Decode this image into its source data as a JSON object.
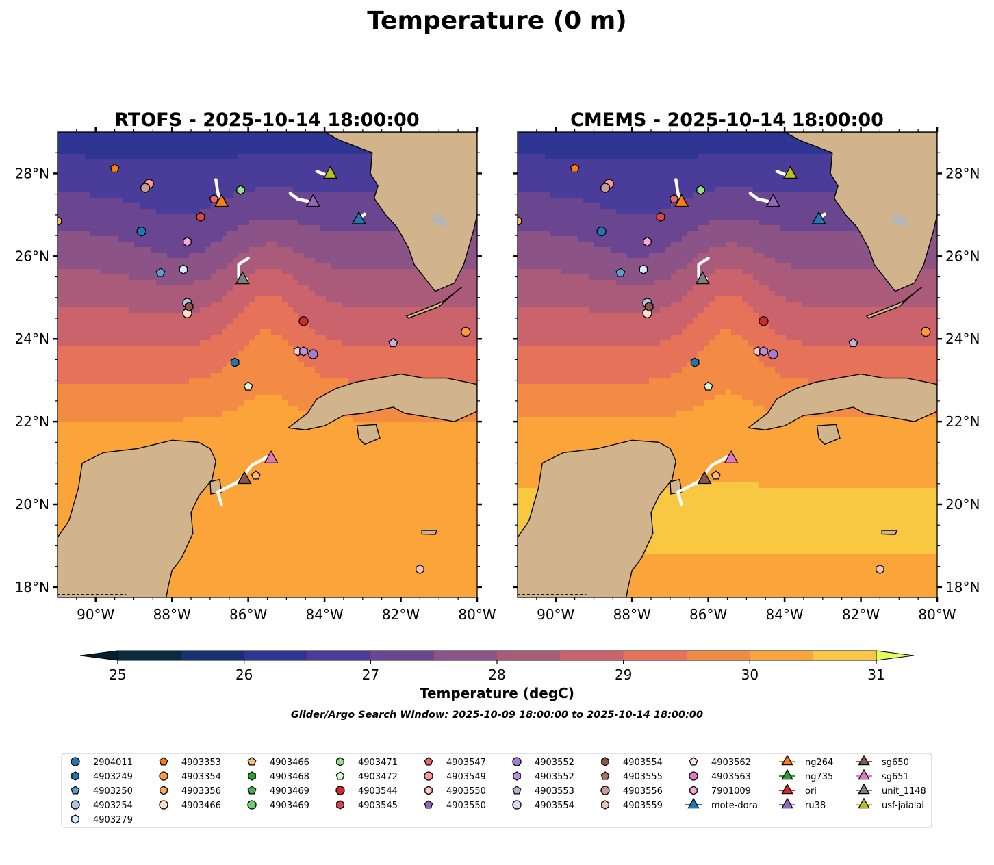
{
  "figure_title": "Temperature (0 m)",
  "panels": [
    {
      "id": "rtofs",
      "title": "RTOFS - 2025-10-14 18:00:00"
    },
    {
      "id": "cmems",
      "title": "CMEMS - 2025-10-14 18:00:00"
    }
  ],
  "map_extent": {
    "lon_min": -91.0,
    "lon_max": -80.0,
    "lat_min": 17.75,
    "lat_max": 29.0
  },
  "axes": {
    "x_ticks": [
      {
        "value": -90,
        "label": "90°W"
      },
      {
        "value": -88,
        "label": "88°W"
      },
      {
        "value": -86,
        "label": "86°W"
      },
      {
        "value": -84,
        "label": "84°W"
      },
      {
        "value": -82,
        "label": "82°W"
      },
      {
        "value": -80,
        "label": "80°W"
      }
    ],
    "y_ticks": [
      {
        "value": 18,
        "label": "18°N"
      },
      {
        "value": 20,
        "label": "20°N"
      },
      {
        "value": 22,
        "label": "22°N"
      },
      {
        "value": 24,
        "label": "24°N"
      },
      {
        "value": 26,
        "label": "26°N"
      },
      {
        "value": 28,
        "label": "28°N"
      }
    ]
  },
  "colorbar": {
    "label": "Temperature (degC)",
    "min": 25,
    "max": 31,
    "tick_values": [
      25,
      26,
      27,
      28,
      29,
      30,
      31
    ],
    "tick_labels": [
      "25",
      "26",
      "27",
      "28",
      "29",
      "30",
      "31"
    ],
    "under_color": "#04202c",
    "over_color": "#e8fa5b",
    "bins": [
      {
        "from": 25.0,
        "to": 25.5,
        "color": "#0a2a42"
      },
      {
        "from": 25.5,
        "to": 26.0,
        "color": "#173172"
      },
      {
        "from": 26.0,
        "to": 26.5,
        "color": "#2e3593"
      },
      {
        "from": 26.5,
        "to": 27.0,
        "color": "#4a3d99"
      },
      {
        "from": 27.0,
        "to": 27.5,
        "color": "#6a4690"
      },
      {
        "from": 27.5,
        "to": 28.0,
        "color": "#8b5386"
      },
      {
        "from": 28.0,
        "to": 28.5,
        "color": "#ab5b7a"
      },
      {
        "from": 28.5,
        "to": 29.0,
        "color": "#cb636c"
      },
      {
        "from": 29.0,
        "to": 29.5,
        "color": "#e57259"
      },
      {
        "from": 29.5,
        "to": 30.0,
        "color": "#f48b45"
      },
      {
        "from": 30.0,
        "to": 30.5,
        "color": "#fba43a"
      },
      {
        "from": 30.5,
        "to": 31.0,
        "color": "#f8c843"
      }
    ]
  },
  "search_window": "Glider/Argo Search Window: 2025-10-09 18:00:00 to 2025-10-14 18:00:00",
  "colors": {
    "land": "#d2b48c",
    "coast": "#000000",
    "track": "#ffffff",
    "lake": "#a7c0dc"
  },
  "platforms": [
    {
      "label": "2904011",
      "shape": "circle",
      "color": "#1f77b4",
      "lon": -88.8,
      "lat": 26.6
    },
    {
      "label": "4903249",
      "shape": "hexagon",
      "color": "#1f77b4",
      "lon": -86.35,
      "lat": 23.43
    },
    {
      "label": "4903250",
      "shape": "pentagon",
      "color": "#5a9fd4",
      "lon": -88.3,
      "lat": 25.6
    },
    {
      "label": "4903254",
      "shape": "circle",
      "color": "#aec7e8",
      "lon": -87.6,
      "lat": 24.87
    },
    {
      "label": "4903279",
      "shape": "hexagon",
      "color": "#d7ecfb",
      "lon": -87.7,
      "lat": 25.68
    },
    {
      "label": "4903353",
      "shape": "pentagon",
      "color": "#ff7f0e",
      "lon": -89.5,
      "lat": 28.12
    },
    {
      "label": "4903354",
      "shape": "circle",
      "color": "#ff9a3c",
      "lon": -80.3,
      "lat": 24.17
    },
    {
      "label": "4903356",
      "shape": "hexagon",
      "color": "#ffae5f",
      "lon": -91.0,
      "lat": 26.85
    },
    {
      "label": "4903466",
      "shape": "circle",
      "color": "#ffe0c2",
      "lon": -87.6,
      "lat": 24.62
    },
    {
      "label": "4903466",
      "shape": "pentagon",
      "color": "#ffbb78",
      "lon": -85.8,
      "lat": 20.7
    },
    {
      "label": "4903468",
      "shape": "hexagon",
      "color": "#2ca02c",
      "lon": null,
      "lat": null
    },
    {
      "label": "4903469",
      "shape": "pentagon",
      "color": "#4bb04b",
      "lon": null,
      "lat": null
    },
    {
      "label": "4903469",
      "shape": "circle",
      "color": "#6ccd6c",
      "lon": null,
      "lat": null
    },
    {
      "label": "4903471",
      "shape": "hexagon",
      "color": "#98df8a",
      "lon": -86.2,
      "lat": 27.6
    },
    {
      "label": "4903472",
      "shape": "pentagon",
      "color": "#d9f7d3",
      "lon": -86.0,
      "lat": 22.85
    },
    {
      "label": "4903544",
      "shape": "circle",
      "color": "#d62728",
      "lon": -84.55,
      "lat": 24.43
    },
    {
      "label": "4903545",
      "shape": "hexagon",
      "color": "#e04344",
      "lon": -87.25,
      "lat": 26.95
    },
    {
      "label": "4903547",
      "shape": "pentagon",
      "color": "#e8676a",
      "lon": -86.9,
      "lat": 27.38
    },
    {
      "label": "4903549",
      "shape": "circle",
      "color": "#ff9896",
      "lon": -88.6,
      "lat": 27.75
    },
    {
      "label": "4903550",
      "shape": "hexagon",
      "color": "#ffc9c7",
      "lon": -84.7,
      "lat": 23.7
    },
    {
      "label": "4903550",
      "shape": "pentagon",
      "color": "#9467bd",
      "lon": null,
      "lat": null
    },
    {
      "label": "4903552",
      "shape": "circle",
      "color": "#a57dd0",
      "lon": -84.3,
      "lat": 23.63
    },
    {
      "label": "4903552",
      "shape": "hexagon",
      "color": "#b593dc",
      "lon": -84.55,
      "lat": 23.7
    },
    {
      "label": "4903553",
      "shape": "pentagon",
      "color": "#c5b0d5",
      "lon": -82.2,
      "lat": 23.9
    },
    {
      "label": "4903554",
      "shape": "circle",
      "color": "#e6d6f2",
      "lon": null,
      "lat": null
    },
    {
      "label": "4903554",
      "shape": "hexagon",
      "color": "#8c564b",
      "lon": -87.55,
      "lat": 24.78
    },
    {
      "label": "4903555",
      "shape": "pentagon",
      "color": "#a8716a",
      "lon": null,
      "lat": null
    },
    {
      "label": "4903556",
      "shape": "circle",
      "color": "#c49c94",
      "lon": -88.7,
      "lat": 27.65
    },
    {
      "label": "4903559",
      "shape": "hexagon",
      "color": "#f0c2b8",
      "lon": -81.5,
      "lat": 18.43
    },
    {
      "label": "4903562",
      "shape": "pentagon",
      "color": "#fde2d8",
      "lon": null,
      "lat": null
    },
    {
      "label": "4903563",
      "shape": "circle",
      "color": "#e377c2",
      "lon": null,
      "lat": null
    },
    {
      "label": "7901009",
      "shape": "hexagon",
      "color": "#f7a8dc",
      "lon": -87.6,
      "lat": 26.35
    },
    {
      "label": "mote-dora",
      "shape": "triangle",
      "color": "#1f77b4",
      "lon": -83.1,
      "lat": 26.9,
      "line": true
    },
    {
      "label": "ng264",
      "shape": "triangle",
      "color": "#ff7f0e",
      "lon": -86.7,
      "lat": 27.32,
      "line": true
    },
    {
      "label": "ng735",
      "shape": "triangle",
      "color": "#2ca02c",
      "lon": null,
      "lat": null,
      "line": true
    },
    {
      "label": "ori",
      "shape": "triangle",
      "color": "#d62728",
      "lon": null,
      "lat": null,
      "line": true
    },
    {
      "label": "ru38",
      "shape": "triangle",
      "color": "#9467bd",
      "lon": -84.3,
      "lat": 27.32,
      "line": true
    },
    {
      "label": "sg650",
      "shape": "triangle",
      "color": "#8c564b",
      "lon": -86.1,
      "lat": 20.62,
      "line": true
    },
    {
      "label": "sg651",
      "shape": "triangle",
      "color": "#e377c2",
      "lon": -85.4,
      "lat": 21.12,
      "line": true
    },
    {
      "label": "unit_1148",
      "shape": "triangle",
      "color": "#7f7f7f",
      "lon": -86.15,
      "lat": 25.45,
      "line": true
    },
    {
      "label": "usf-jaialai",
      "shape": "triangle",
      "color": "#bcbd22",
      "lon": -83.85,
      "lat": 28.0,
      "line": true
    }
  ],
  "glider_tracks": [
    [
      [
        -86.85,
        27.85
      ],
      [
        -86.8,
        27.55
      ],
      [
        -86.75,
        27.35
      ]
    ],
    [
      [
        -84.9,
        27.52
      ],
      [
        -84.7,
        27.38
      ],
      [
        -84.4,
        27.32
      ]
    ],
    [
      [
        -84.2,
        28.05
      ],
      [
        -84.0,
        27.98
      ]
    ],
    [
      [
        -83.1,
        26.9
      ],
      [
        -82.95,
        27.02
      ]
    ],
    [
      [
        -86.0,
        25.95
      ],
      [
        -86.25,
        25.8
      ],
      [
        -86.25,
        25.5
      ],
      [
        -86.05,
        25.45
      ]
    ],
    [
      [
        -85.5,
        21.15
      ],
      [
        -85.9,
        20.95
      ],
      [
        -86.25,
        20.55
      ],
      [
        -86.8,
        20.3
      ],
      [
        -86.7,
        20.0
      ]
    ]
  ],
  "land_polygons": {
    "florida": [
      [
        -85.05,
        29.0
      ],
      [
        -84.0,
        29.0
      ],
      [
        -83.6,
        28.8
      ],
      [
        -82.75,
        28.5
      ],
      [
        -82.8,
        28.0
      ],
      [
        -82.6,
        27.7
      ],
      [
        -82.7,
        27.4
      ],
      [
        -82.4,
        27.0
      ],
      [
        -82.1,
        26.7
      ],
      [
        -81.8,
        26.2
      ],
      [
        -81.65,
        25.8
      ],
      [
        -81.1,
        25.15
      ],
      [
        -80.6,
        25.35
      ],
      [
        -80.35,
        25.8
      ],
      [
        -80.1,
        26.6
      ],
      [
        -80.0,
        27.0
      ],
      [
        -80.0,
        29.0
      ]
    ],
    "cuba": [
      [
        -84.95,
        21.85
      ],
      [
        -84.45,
        22.2
      ],
      [
        -84.2,
        22.55
      ],
      [
        -83.7,
        22.8
      ],
      [
        -83.2,
        22.95
      ],
      [
        -82.6,
        23.05
      ],
      [
        -82.0,
        23.15
      ],
      [
        -81.4,
        23.05
      ],
      [
        -80.8,
        23.05
      ],
      [
        -80.0,
        22.9
      ],
      [
        -80.0,
        22.25
      ],
      [
        -80.6,
        22.0
      ],
      [
        -81.2,
        22.1
      ],
      [
        -81.9,
        22.2
      ],
      [
        -82.2,
        22.35
      ],
      [
        -83.0,
        22.2
      ],
      [
        -83.5,
        22.15
      ],
      [
        -84.0,
        21.9
      ],
      [
        -84.5,
        21.8
      ]
    ],
    "yucatan": [
      [
        -91.0,
        18.9
      ],
      [
        -91.0,
        19.2
      ],
      [
        -90.7,
        19.6
      ],
      [
        -90.45,
        20.4
      ],
      [
        -90.35,
        21.0
      ],
      [
        -89.8,
        21.25
      ],
      [
        -88.9,
        21.35
      ],
      [
        -88.0,
        21.55
      ],
      [
        -87.3,
        21.5
      ],
      [
        -87.0,
        21.35
      ],
      [
        -86.85,
        21.05
      ],
      [
        -86.95,
        20.6
      ],
      [
        -87.3,
        20.2
      ],
      [
        -87.5,
        19.8
      ],
      [
        -87.45,
        19.3
      ],
      [
        -87.75,
        18.7
      ],
      [
        -88.0,
        18.4
      ],
      [
        -88.1,
        18.0
      ],
      [
        -88.15,
        17.75
      ],
      [
        -91.0,
        17.75
      ]
    ],
    "isle_of_youth": [
      [
        -83.15,
        21.9
      ],
      [
        -82.65,
        21.93
      ],
      [
        -82.55,
        21.6
      ],
      [
        -82.95,
        21.45
      ],
      [
        -83.1,
        21.6
      ]
    ],
    "cozumel": [
      [
        -87.0,
        20.55
      ],
      [
        -86.75,
        20.6
      ],
      [
        -86.7,
        20.3
      ],
      [
        -86.98,
        20.25
      ]
    ],
    "cayman": [
      [
        -81.45,
        19.37
      ],
      [
        -81.05,
        19.37
      ],
      [
        -81.1,
        19.27
      ],
      [
        -81.45,
        19.28
      ]
    ],
    "keys": [
      [
        -81.85,
        24.55
      ],
      [
        -80.9,
        24.9
      ],
      [
        -80.4,
        25.25
      ],
      [
        -80.55,
        25.15
      ],
      [
        -81.0,
        24.78
      ],
      [
        -81.8,
        24.5
      ]
    ]
  },
  "legend_columns": [
    10,
    10,
    10,
    10,
    10,
    10,
    10,
    10,
    10,
    10
  ]
}
